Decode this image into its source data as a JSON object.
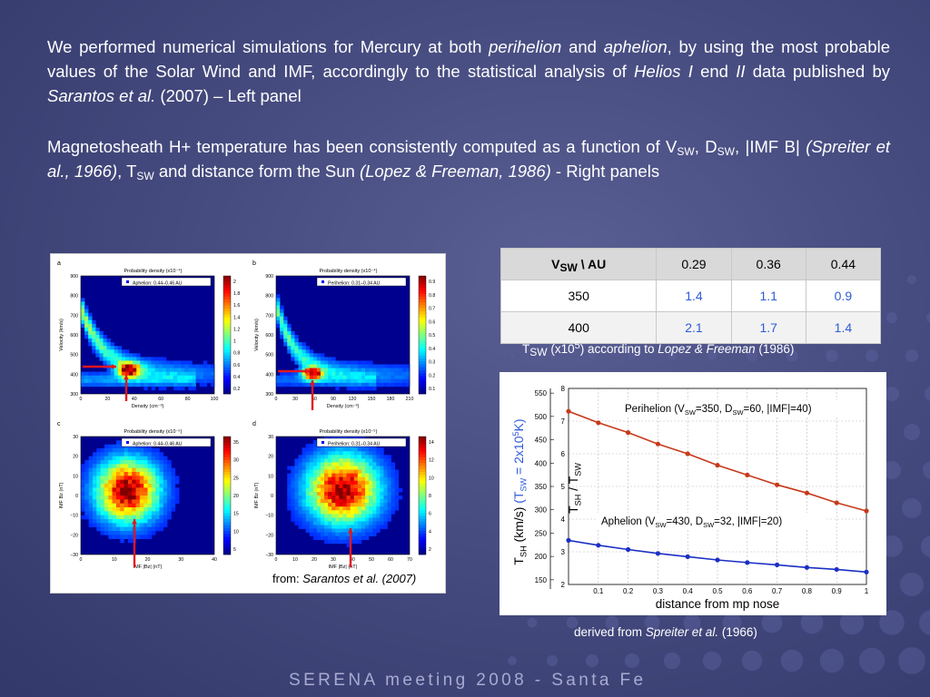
{
  "paragraph1": {
    "t1": "We performed numerical simulations for Mercury at both ",
    "t2": "perihelion",
    "t3": " and ",
    "t4": "aphelion",
    "t5": ", by using the most probable values of the Solar Wind and IMF, accordingly to the statistical analysis of ",
    "t6": "Helios I",
    "t7": " end ",
    "t8": "II",
    "t9": " data published by ",
    "t10": "Sarantos et al.",
    "t11": " (2007) – Left panel"
  },
  "paragraph2": {
    "t1": "Magnetosheath H+ temperature has been consistently computed as a function of V",
    "sub1": "SW",
    "t2": ", D",
    "sub2": "SW",
    "t3": ", |IMF B| ",
    "t4": "(Spreiter et al., 1966)",
    "t5": ", T",
    "sub3": "SW",
    "t6": " and distance form the Sun ",
    "t7": "(Lopez & Freeman, 1986)",
    "t8": " - Right panels"
  },
  "left_figure": {
    "credit_prefix": "from: ",
    "credit_ref": "Sarantos et al. (2007)",
    "panels": [
      {
        "letter": "a",
        "title": "Probability density (x10⁻⁴)",
        "legend": "Aphelion: 0.44–0.46 AU",
        "xlabel": "Density (cm⁻³)",
        "ylabel": "Velocity (km/s)",
        "xticks": [
          "0",
          "20",
          "40",
          "60",
          "80",
          "100"
        ],
        "yticks": [
          "900",
          "800",
          "700",
          "600",
          "500",
          "400",
          "300"
        ],
        "cticks": [
          "2",
          "1.8",
          "1.6",
          "1.4",
          "1.2",
          "1",
          "0.8",
          "0.6",
          "0.4",
          "0.2"
        ]
      },
      {
        "letter": "b",
        "title": "Probability density (x10⁻⁴)",
        "legend": "Perihelion: 0.31–0.34 AU",
        "xlabel": "Density (cm⁻³)",
        "ylabel": "Velocity (km/s)",
        "xticks": [
          "0",
          "30",
          "60",
          "90",
          "120",
          "150",
          "180",
          "210"
        ],
        "yticks": [
          "900",
          "800",
          "700",
          "600",
          "500",
          "400",
          "300"
        ],
        "cticks": [
          "0.9",
          "0.8",
          "0.7",
          "0.6",
          "0.5",
          "0.4",
          "0.3",
          "0.2",
          "0.1"
        ]
      },
      {
        "letter": "c",
        "title": "Probability density (x10⁻⁵)",
        "legend": "Aphelion: 0.44–0.46 AU",
        "xlabel": "IMF |Bz| (nT)",
        "ylabel": "IMF Bz (nT)",
        "xticks": [
          "0",
          "10",
          "20",
          "30",
          "40"
        ],
        "yticks": [
          "30",
          "20",
          "10",
          "0",
          "−10",
          "−20",
          "−30"
        ],
        "cticks": [
          "35",
          "30",
          "25",
          "20",
          "15",
          "10",
          "5"
        ]
      },
      {
        "letter": "d",
        "title": "Probability density (x10⁻⁵)",
        "legend": "Perihelion: 0.31–0.34 AU",
        "xlabel": "IMF |Bz| (nT)",
        "ylabel": "IMF Bz (nT)",
        "xticks": [
          "0",
          "10",
          "20",
          "30",
          "40",
          "50",
          "60",
          "70"
        ],
        "yticks": [
          "30",
          "20",
          "10",
          "0",
          "−10",
          "−20",
          "−30"
        ],
        "cticks": [
          "14",
          "12",
          "10",
          "8",
          "6",
          "4",
          "2"
        ]
      }
    ]
  },
  "table": {
    "corner": "V",
    "corner_sub": "SW",
    "corner_rest": " \\ AU",
    "columns": [
      "0.29",
      "0.36",
      "0.44"
    ],
    "rows": [
      {
        "label": "350",
        "values": [
          "1.4",
          "1.1",
          "0.9"
        ]
      },
      {
        "label": "400",
        "values": [
          "2.1",
          "1.7",
          "1.4"
        ]
      }
    ],
    "value_color": "#2e5bd6"
  },
  "table_caption": {
    "t1": "T",
    "sub": "SW",
    "t2": " (x10",
    "sup": "5",
    "t3": ") according to ",
    "t4": "Lopez & Freeman",
    "t5": " (1986)"
  },
  "chart_data": {
    "type": "line",
    "xlabel": "distance from mp nose",
    "ylabel_left": "T_SH (km/s)",
    "ylabel_left_paren": "(T_SW = 2x10⁵K)",
    "ylabel_right": "T_SH / T_SW",
    "x": [
      0,
      0.1,
      0.2,
      0.3,
      0.4,
      0.5,
      0.6,
      0.7,
      0.8,
      0.9,
      1
    ],
    "xlim": [
      0,
      1
    ],
    "ylim_right": [
      2,
      8
    ],
    "ylim_left": [
      140,
      560
    ],
    "xticks": [
      "0.1",
      "0.2",
      "0.3",
      "0.4",
      "0.5",
      "0.6",
      "0.7",
      "0.8",
      "0.9",
      "1"
    ],
    "yticks_left": [
      "550",
      "500",
      "450",
      "400",
      "350",
      "300",
      "250",
      "200",
      "150"
    ],
    "yticks_right": [
      "8",
      "7",
      "6",
      "5",
      "4",
      "3",
      "2"
    ],
    "series": [
      {
        "name": "Perihelion (V_SW=350, D_SW=60, |IMF|=40)",
        "color": "#c8391a",
        "values": [
          7.3,
          6.95,
          6.65,
          6.3,
          6.0,
          5.65,
          5.35,
          5.05,
          4.8,
          4.5,
          4.25
        ]
      },
      {
        "name": "Aphelion (V_SW=430, D_SW=32, |IMF|=20)",
        "color": "#1b2fc4",
        "values": [
          3.35,
          3.2,
          3.07,
          2.95,
          2.85,
          2.75,
          2.67,
          2.6,
          2.52,
          2.46,
          2.38
        ]
      }
    ],
    "labels": {
      "peri": {
        "t1": "Perihelion (V",
        "s1": "SW",
        "t2": "=350, D",
        "s2": "SW",
        "t3": "=60, |IMF|=40)"
      },
      "aph": {
        "t1": "Aphelion (V",
        "s1": "SW",
        "t2": "=430, D",
        "s2": "SW",
        "t3": "=32, |IMF|=20)"
      }
    }
  },
  "right_caption": {
    "t1": "derived from ",
    "t2": "Spreiter et al.",
    "t3": " (1966)"
  },
  "footer": "SERENA meeting 2008 - Santa Fe"
}
